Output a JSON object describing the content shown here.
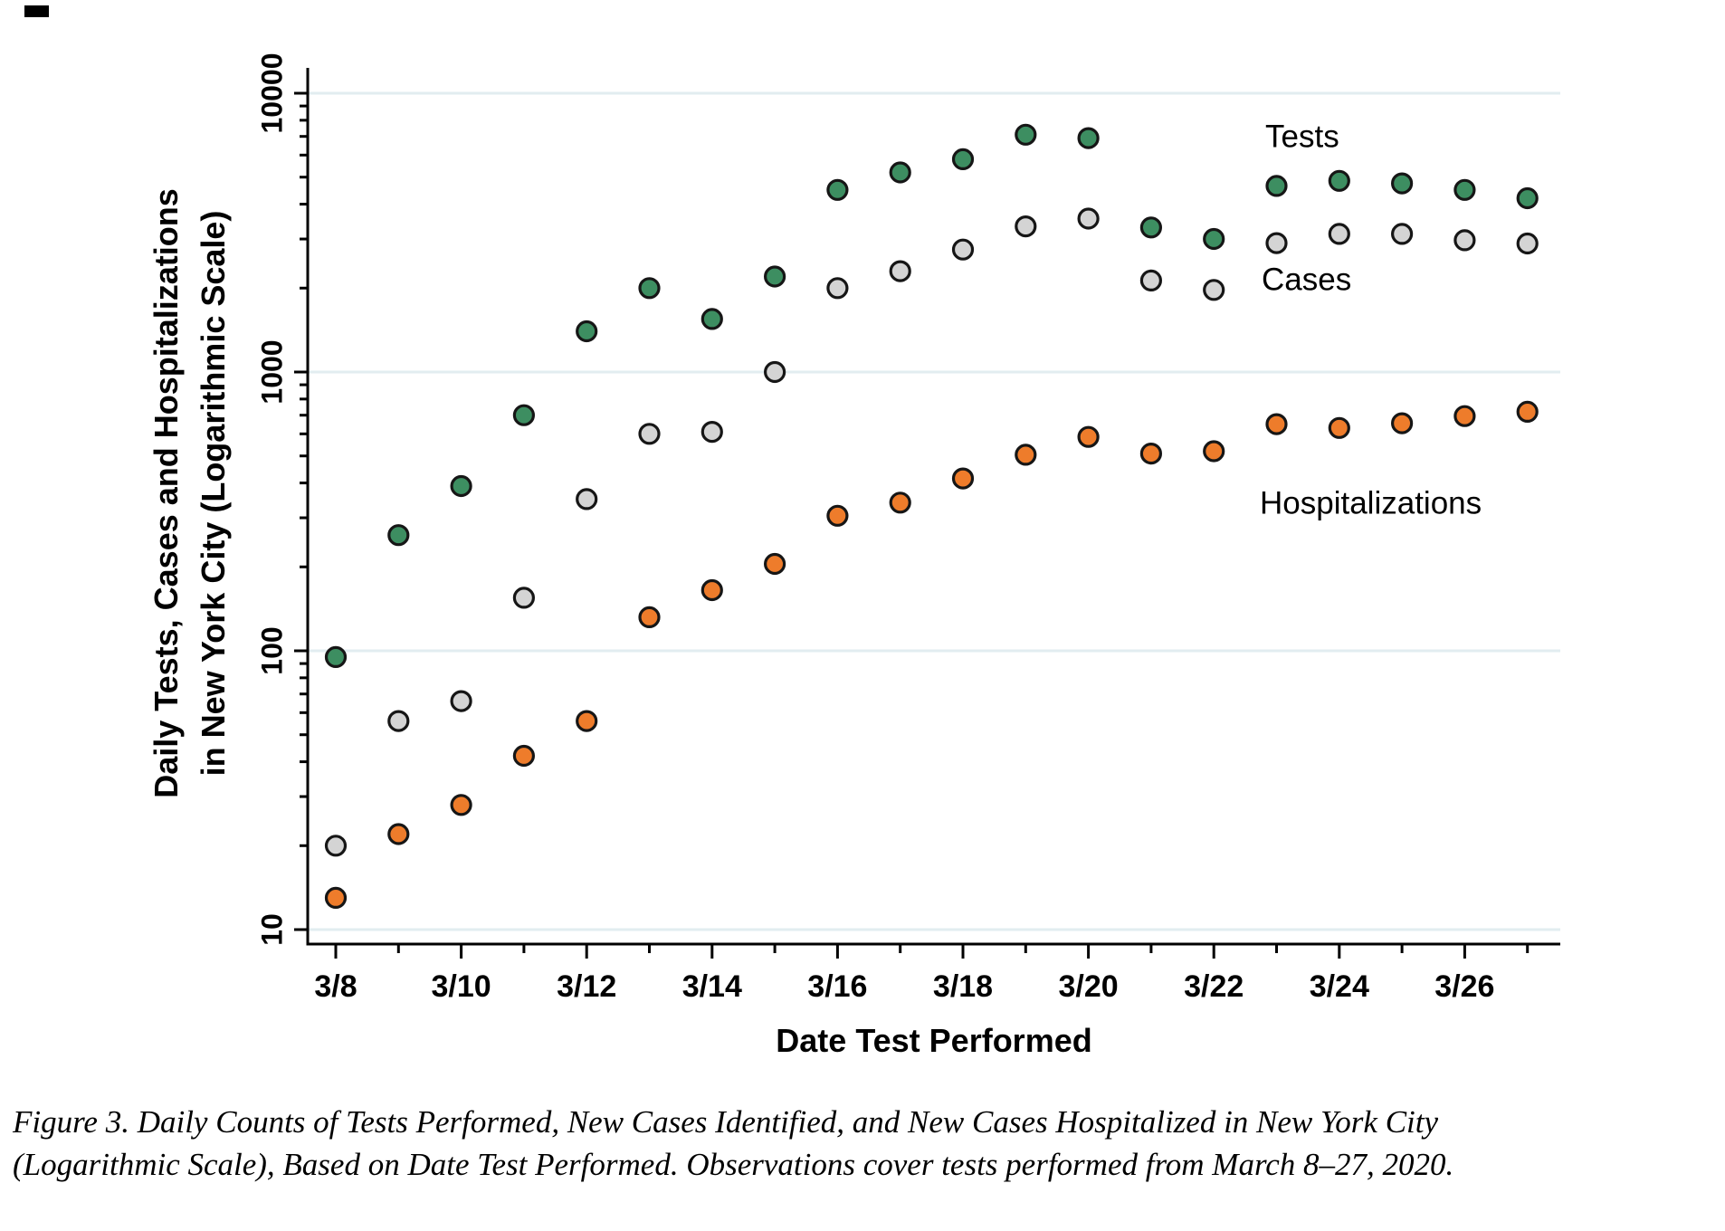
{
  "figure": {
    "y_axis_label_line1": "Daily Tests, Cases and Hospitalizations",
    "y_axis_label_line2": "in New York City (Logarithmic Scale)",
    "x_axis_label": "Date Test Performed",
    "caption_line1": "Figure 3. Daily Counts of Tests Performed, New Cases Identified, and New Cases Hospitalized in New York City",
    "caption_line2": "(Logarithmic Scale), Based on Date Test Performed. Observations cover tests performed from March 8–27, 2020."
  },
  "chart_data": {
    "type": "scatter",
    "scale": "log",
    "grid": "horizontal",
    "ylim": [
      10,
      10000
    ],
    "y_tick_values": [
      10,
      100,
      1000,
      10000
    ],
    "y_tick_labels": [
      "10",
      "100",
      "1000",
      "10000"
    ],
    "x": [
      "3/8",
      "3/9",
      "3/10",
      "3/11",
      "3/12",
      "3/13",
      "3/14",
      "3/15",
      "3/16",
      "3/17",
      "3/18",
      "3/19",
      "3/20",
      "3/21",
      "3/22",
      "3/23",
      "3/24",
      "3/25",
      "3/26",
      "3/27"
    ],
    "x_labeled_ticks": [
      "3/8",
      "3/10",
      "3/12",
      "3/14",
      "3/16",
      "3/18",
      "3/20",
      "3/22",
      "3/24",
      "3/26"
    ],
    "series": [
      {
        "name": "Tests",
        "color": "#3D8E61",
        "values": [
          95,
          260,
          390,
          700,
          1400,
          2000,
          1550,
          2200,
          4500,
          5200,
          5800,
          7100,
          6900,
          3300,
          3000,
          4650,
          4850,
          4750,
          4500,
          4200
        ]
      },
      {
        "name": "Cases",
        "color": "#D4D4D4",
        "values": [
          20,
          56,
          66,
          155,
          350,
          600,
          610,
          1000,
          2000,
          2300,
          2750,
          3330,
          3550,
          2130,
          1970,
          2900,
          3130,
          3130,
          2970,
          2890
        ]
      },
      {
        "name": "Hospitalizations",
        "color": "#EE7C2B",
        "values": [
          13,
          22,
          28,
          42,
          56,
          132,
          165,
          205,
          305,
          340,
          415,
          505,
          585,
          510,
          520,
          650,
          630,
          655,
          695,
          720
        ]
      }
    ],
    "legend_position": "inline-right",
    "legend_labels": [
      {
        "text": "Tests",
        "x": 1398,
        "y": 153
      },
      {
        "text": "Cases",
        "x": 1394,
        "y": 311
      },
      {
        "text": "Hospitalizations",
        "x": 1392,
        "y": 558
      }
    ],
    "colors": {
      "marker_stroke": "#161616",
      "gridline": "#E2EDF0",
      "axis": "#000000"
    }
  }
}
